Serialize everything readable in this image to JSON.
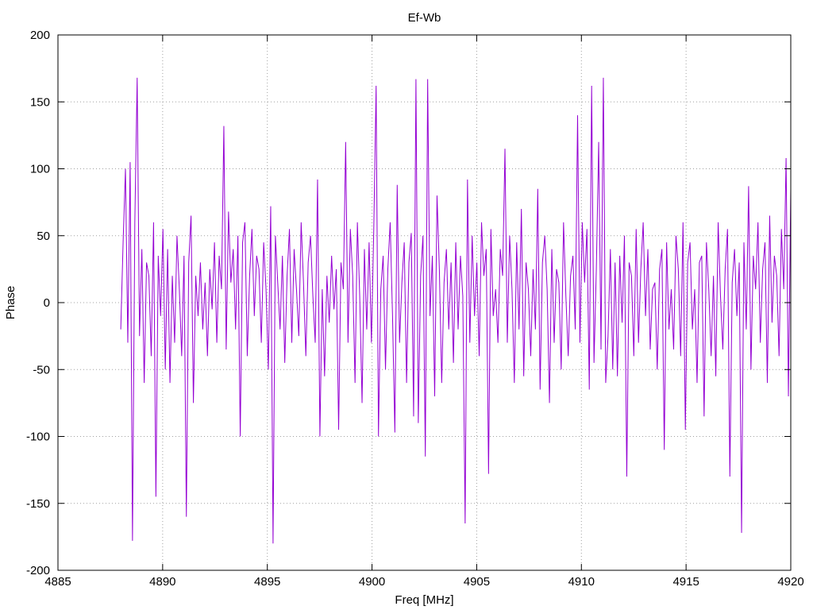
{
  "chart_data": {
    "type": "line",
    "title": "Ef-Wb",
    "xlabel": "Freq [MHz]",
    "ylabel": "Phase",
    "xlim": [
      4885,
      4920
    ],
    "ylim": [
      -200,
      200
    ],
    "xticks": [
      4885,
      4890,
      4895,
      4900,
      4905,
      4910,
      4915,
      4920
    ],
    "yticks": [
      -200,
      -150,
      -100,
      -50,
      0,
      50,
      100,
      150,
      200
    ],
    "grid": true,
    "legend": "none",
    "series_color": "#9400d3",
    "series": [
      {
        "x_start": 4888.0,
        "x_end": 4920.0,
        "values": [
          -20,
          45,
          100,
          -30,
          105,
          -178,
          60,
          168,
          -25,
          40,
          -60,
          30,
          20,
          -40,
          60,
          -145,
          35,
          -10,
          55,
          -50,
          40,
          -60,
          20,
          -30,
          50,
          10,
          -40,
          35,
          -160,
          30,
          65,
          -75,
          20,
          -10,
          30,
          -20,
          15,
          -40,
          25,
          -5,
          45,
          -30,
          35,
          10,
          132,
          -35,
          68,
          15,
          40,
          -20,
          50,
          -100,
          45,
          60,
          -40,
          20,
          55,
          -10,
          35,
          25,
          -30,
          45,
          10,
          -50,
          72,
          -180,
          50,
          15,
          -20,
          35,
          -45,
          20,
          55,
          -30,
          40,
          10,
          -25,
          60,
          15,
          -40,
          30,
          50,
          5,
          -30,
          92,
          -100,
          10,
          -55,
          20,
          -15,
          35,
          -5,
          25,
          -95,
          30,
          10,
          120,
          -30,
          55,
          20,
          -60,
          60,
          5,
          -75,
          40,
          -20,
          45,
          -30,
          55,
          162,
          -100,
          10,
          35,
          -50,
          25,
          60,
          -10,
          -97,
          88,
          -30,
          15,
          45,
          -60,
          30,
          52,
          -85,
          167,
          -90,
          20,
          50,
          -115,
          167,
          -10,
          35,
          -70,
          80,
          25,
          -60,
          15,
          40,
          -20,
          30,
          -45,
          45,
          -20,
          35,
          5,
          -165,
          92,
          -30,
          50,
          -10,
          30,
          -40,
          60,
          20,
          40,
          -128,
          55,
          -10,
          10,
          -30,
          40,
          20,
          115,
          -30,
          50,
          10,
          -60,
          45,
          -20,
          70,
          -55,
          30,
          10,
          -40,
          25,
          -20,
          85,
          -65,
          30,
          50,
          10,
          -75,
          40,
          -30,
          25,
          15,
          -50,
          60,
          5,
          -40,
          20,
          35,
          -20,
          140,
          -30,
          60,
          15,
          55,
          -65,
          162,
          -45,
          25,
          120,
          -35,
          168,
          -60,
          -25,
          40,
          -50,
          30,
          -55,
          35,
          -15,
          50,
          -130,
          30,
          20,
          -40,
          55,
          -30,
          25,
          60,
          -10,
          40,
          -35,
          10,
          15,
          -50,
          25,
          40,
          -110,
          45,
          -20,
          10,
          -35,
          50,
          25,
          -40,
          60,
          -95,
          30,
          45,
          -20,
          10,
          -60,
          30,
          35,
          -85,
          45,
          10,
          -40,
          20,
          -55,
          60,
          5,
          -35,
          25,
          55,
          -130,
          15,
          40,
          -10,
          30,
          -172,
          45,
          -20,
          87,
          -50,
          35,
          10,
          60,
          -30,
          25,
          45,
          -60,
          65,
          -15,
          35,
          20,
          -40,
          55,
          10,
          108,
          -70,
          85
        ]
      }
    ]
  }
}
